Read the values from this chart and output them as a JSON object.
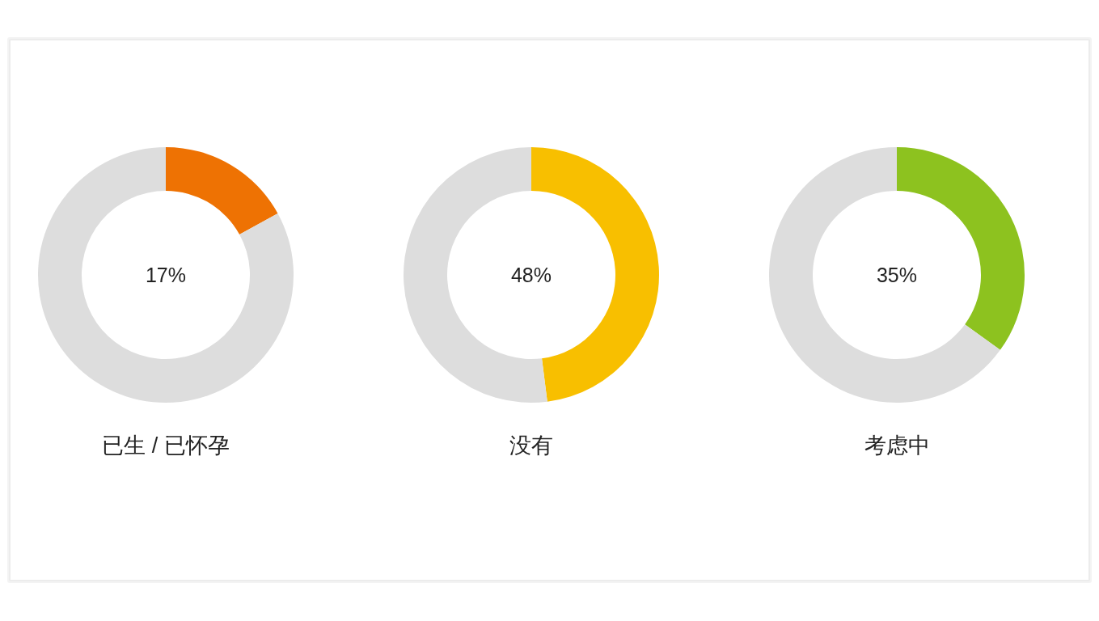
{
  "chart_data": [
    {
      "type": "donut",
      "title": "已生 / 已怀孕",
      "categories": [
        null,
        null
      ],
      "values": [
        17,
        83
      ],
      "colors": [
        "#ee7203",
        "#dddddd"
      ],
      "annotations": [
        "17%"
      ]
    },
    {
      "type": "donut",
      "title": "没有",
      "categories": [
        null,
        null
      ],
      "values": [
        48,
        52
      ],
      "colors": [
        "#f8bf00",
        "#dddddd"
      ],
      "annotations": [
        "48%"
      ]
    },
    {
      "type": "donut",
      "title": "考虑中",
      "categories": [
        null,
        null
      ],
      "values": [
        35,
        65
      ],
      "colors": [
        "#8dc21f",
        "#dddddd"
      ],
      "annotations": [
        "35%"
      ]
    }
  ]
}
